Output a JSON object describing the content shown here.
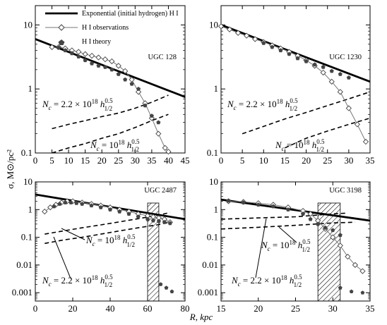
{
  "figure": {
    "ylabel": "σ, M⊙/pc²",
    "xlabel": "R, kpc",
    "legend": [
      {
        "key": "exp",
        "label": "Exponential (initial hydrogen) H I"
      },
      {
        "key": "obs",
        "label": "H I observations"
      },
      {
        "key": "theory",
        "label": "H I theory"
      }
    ]
  },
  "chart_data": [
    {
      "name": "UGC 128",
      "type": "line",
      "xlim": [
        0,
        45
      ],
      "ylim": [
        0.1,
        20
      ],
      "yscale": "log",
      "xticks": [
        0,
        5,
        10,
        15,
        20,
        25,
        30,
        35,
        40,
        45
      ],
      "yticks": [
        {
          "v": 0.1,
          "label": "0.1"
        },
        {
          "v": 1,
          "label": "1"
        },
        {
          "v": 10,
          "label": "10"
        }
      ],
      "exponential": {
        "x": [
          0,
          45
        ],
        "y": [
          6.0,
          0.75
        ]
      },
      "observations": {
        "x": [
          5,
          7,
          9,
          11,
          13,
          15,
          17,
          19,
          21,
          23,
          25,
          27,
          29,
          31,
          33,
          35,
          37,
          39,
          40
        ],
        "y": [
          4.5,
          4.5,
          4.3,
          4.0,
          3.8,
          3.5,
          3.3,
          3.1,
          2.9,
          2.7,
          2.3,
          1.9,
          1.4,
          0.9,
          0.6,
          0.35,
          0.2,
          0.12,
          0.105
        ]
      },
      "theory": {
        "x": [
          7,
          9,
          11,
          13,
          15,
          17,
          19,
          21,
          23,
          25,
          27,
          29,
          31,
          33,
          35,
          37
        ],
        "y": [
          4.4,
          4.0,
          3.6,
          3.2,
          2.8,
          2.5,
          2.3,
          2.2,
          2.0,
          1.7,
          1.4,
          1.2,
          1.0,
          0.55,
          0.38,
          0.3
        ]
      },
      "nc_curves": [
        {
          "label": "Nc = 2.2 × 10^18 h1/2^0.5",
          "x": [
            5,
            10,
            15,
            20,
            25,
            30,
            35,
            40
          ],
          "y": [
            0.24,
            0.28,
            0.32,
            0.37,
            0.42,
            0.5,
            0.62,
            0.8
          ]
        },
        {
          "label": "Nc = 10^18 h1/2^0.5",
          "x": [
            5,
            10,
            15,
            20,
            25,
            30,
            35,
            40
          ],
          "y": [
            0.1,
            0.12,
            0.14,
            0.17,
            0.2,
            0.25,
            0.32,
            0.4
          ]
        }
      ],
      "nc_labels": {
        "upper": {
          "coef": "2.2 × 10",
          "exp": "18",
          "sup": "0.5",
          "sub": "1/2"
        },
        "lower": {
          "coef": "10",
          "exp": "18",
          "sup": "0.5",
          "sub": "1/2"
        }
      }
    },
    {
      "name": "UGC 1230",
      "type": "line",
      "xlim": [
        0,
        35
      ],
      "ylim": [
        0.1,
        20
      ],
      "yscale": "log",
      "xticks": [
        0,
        5,
        10,
        15,
        20,
        25,
        30,
        35
      ],
      "yticks": [
        {
          "v": 0.1,
          "label": "0.1"
        },
        {
          "v": 1,
          "label": "1"
        },
        {
          "v": 10,
          "label": "10"
        }
      ],
      "exponential": {
        "x": [
          0,
          35
        ],
        "y": [
          10.0,
          1.3
        ]
      },
      "observations": {
        "x": [
          0,
          2,
          4,
          6,
          8,
          10,
          12,
          14,
          16,
          18,
          20,
          22,
          24,
          26,
          28,
          30,
          32,
          34
        ],
        "y": [
          9.5,
          8.5,
          7.5,
          6.8,
          6.0,
          5.4,
          4.8,
          4.3,
          3.8,
          3.3,
          2.8,
          2.3,
          1.8,
          1.3,
          0.9,
          0.5,
          0.28,
          0.15
        ]
      },
      "theory": {
        "x": [
          10,
          12,
          14,
          16,
          18,
          20,
          22,
          24,
          26,
          28,
          30
        ],
        "y": [
          5.2,
          4.5,
          4.0,
          3.5,
          3.0,
          2.7,
          2.4,
          2.2,
          1.9,
          1.7,
          1.5
        ]
      },
      "nc_curves": [
        {
          "label": "Nc = 2.2 × 10^18 h1/2^0.5",
          "x": [
            5,
            10,
            15,
            20,
            25,
            30,
            35
          ],
          "y": [
            0.2,
            0.26,
            0.34,
            0.43,
            0.55,
            0.7,
            0.9
          ]
        },
        {
          "label": "Nc = 10^18 h1/2^0.5",
          "x": [
            15,
            20,
            25,
            30,
            35
          ],
          "y": [
            0.12,
            0.17,
            0.22,
            0.28,
            0.35
          ]
        }
      ],
      "nc_labels": {
        "upper": {
          "coef": "2.2 × 10",
          "exp": "18",
          "sup": "0.5",
          "sub": "1/2"
        },
        "lower": {
          "coef": "10",
          "exp": "18",
          "sup": "0.5",
          "sub": "1/2"
        }
      }
    },
    {
      "name": "UGC 2487",
      "type": "line",
      "xlim": [
        0,
        80
      ],
      "ylim": [
        0.0005,
        10
      ],
      "yscale": "log",
      "xticks": [
        0,
        20,
        40,
        60,
        80
      ],
      "yticks": [
        {
          "v": 0.001,
          "label": "0.001"
        },
        {
          "v": 0.01,
          "label": "0.01"
        },
        {
          "v": 0.1,
          "label": "0.1"
        },
        {
          "v": 1,
          "label": "1"
        },
        {
          "v": 10,
          "label": "10"
        }
      ],
      "hatch": [
        60,
        66
      ],
      "exponential": {
        "x": [
          0,
          80
        ],
        "y": [
          3.5,
          0.45
        ]
      },
      "observations": {
        "x": [
          5,
          8,
          11,
          14,
          17,
          20,
          25,
          30,
          35,
          40,
          45,
          50,
          55,
          60,
          63,
          66,
          69,
          72
        ],
        "y": [
          0.85,
          1.2,
          1.5,
          1.8,
          2.0,
          2.0,
          1.8,
          1.6,
          1.4,
          1.2,
          1.0,
          0.85,
          0.7,
          0.6,
          0.55,
          0.5,
          0.45,
          0.35
        ]
      },
      "theory": {
        "x": [
          10,
          13,
          16,
          19,
          22,
          25,
          30,
          35,
          40,
          45,
          50,
          55,
          60,
          63,
          66,
          69,
          72
        ],
        "y": [
          1.3,
          1.6,
          1.8,
          1.8,
          1.7,
          1.6,
          1.4,
          1.2,
          1.0,
          0.85,
          0.7,
          0.55,
          0.45,
          0.4,
          0.38,
          0.35,
          0.32
        ]
      },
      "tail_points": {
        "x": [
          67,
          70,
          73
        ],
        "y": [
          0.002,
          0.0015,
          0.0011
        ]
      },
      "nc_curves": [
        {
          "label": "Nc = 2.2 × 10^18 h1/2^0.5",
          "x": [
            5,
            15,
            25,
            35,
            45,
            55,
            65,
            72
          ],
          "y": [
            0.13,
            0.17,
            0.22,
            0.28,
            0.36,
            0.47,
            0.62,
            0.78
          ]
        },
        {
          "label": "Nc = 10^18 h1/2^0.5",
          "x": [
            5,
            15,
            25,
            35,
            45,
            55,
            65,
            72
          ],
          "y": [
            0.06,
            0.08,
            0.1,
            0.13,
            0.17,
            0.22,
            0.28,
            0.35
          ]
        }
      ],
      "nc_labels": {
        "upper": {
          "coef": "10",
          "exp": "18",
          "sup": "0.5",
          "sub": "1/2"
        },
        "lower": {
          "coef": "2.2 × 10",
          "exp": "18",
          "sup": "0.5",
          "sub": "1/2"
        }
      }
    },
    {
      "name": "UGC 3198",
      "type": "line",
      "xlim": [
        15,
        35
      ],
      "ylim": [
        0.0005,
        10
      ],
      "yscale": "log",
      "xticks": [
        15,
        20,
        25,
        30,
        35
      ],
      "yticks": [
        {
          "v": 0.001,
          "label": "0.001"
        },
        {
          "v": 0.01,
          "label": "0.01"
        },
        {
          "v": 0.1,
          "label": "0.1"
        },
        {
          "v": 1,
          "label": "1"
        },
        {
          "v": 10,
          "label": "10"
        }
      ],
      "hatch": [
        28,
        31
      ],
      "exponential": {
        "x": [
          15,
          35
        ],
        "y": [
          2.3,
          0.4
        ]
      },
      "observations": {
        "x": [
          16,
          18,
          20,
          22,
          24,
          26,
          27,
          28,
          29,
          30,
          31,
          32,
          33,
          34
        ],
        "y": [
          2.0,
          1.9,
          1.7,
          1.5,
          1.2,
          0.9,
          0.7,
          0.4,
          0.2,
          0.1,
          0.05,
          0.02,
          0.01,
          0.006
        ]
      },
      "theory": {
        "x": [
          16,
          18,
          20,
          22,
          24,
          26,
          27,
          28,
          29,
          30,
          31
        ],
        "y": [
          2.1,
          1.8,
          1.5,
          1.3,
          1.0,
          0.7,
          0.45,
          0.3,
          0.22,
          0.18,
          0.12
        ]
      },
      "tail_points": {
        "x": [
          31,
          32.5,
          34
        ],
        "y": [
          0.0015,
          0.0011,
          0.001
        ]
      },
      "nc_curves": [
        {
          "label": "Nc = 2.2 × 10^18 h1/2^0.5",
          "x": [
            15,
            20,
            25,
            30,
            32
          ],
          "y": [
            0.45,
            0.5,
            0.55,
            0.7,
            0.75
          ]
        },
        {
          "label": "Nc = 10^18 h1/2^0.5",
          "x": [
            15,
            20,
            25,
            30,
            33
          ],
          "y": [
            0.2,
            0.23,
            0.27,
            0.33,
            0.35
          ]
        }
      ],
      "nc_labels": {
        "upper": {
          "coef": "10",
          "exp": "18",
          "sup": "0.5",
          "sub": "1/2"
        },
        "lower": {
          "coef": "2.2 × 10",
          "exp": "18",
          "sup": "0.5",
          "sub": "1/2"
        }
      }
    }
  ]
}
